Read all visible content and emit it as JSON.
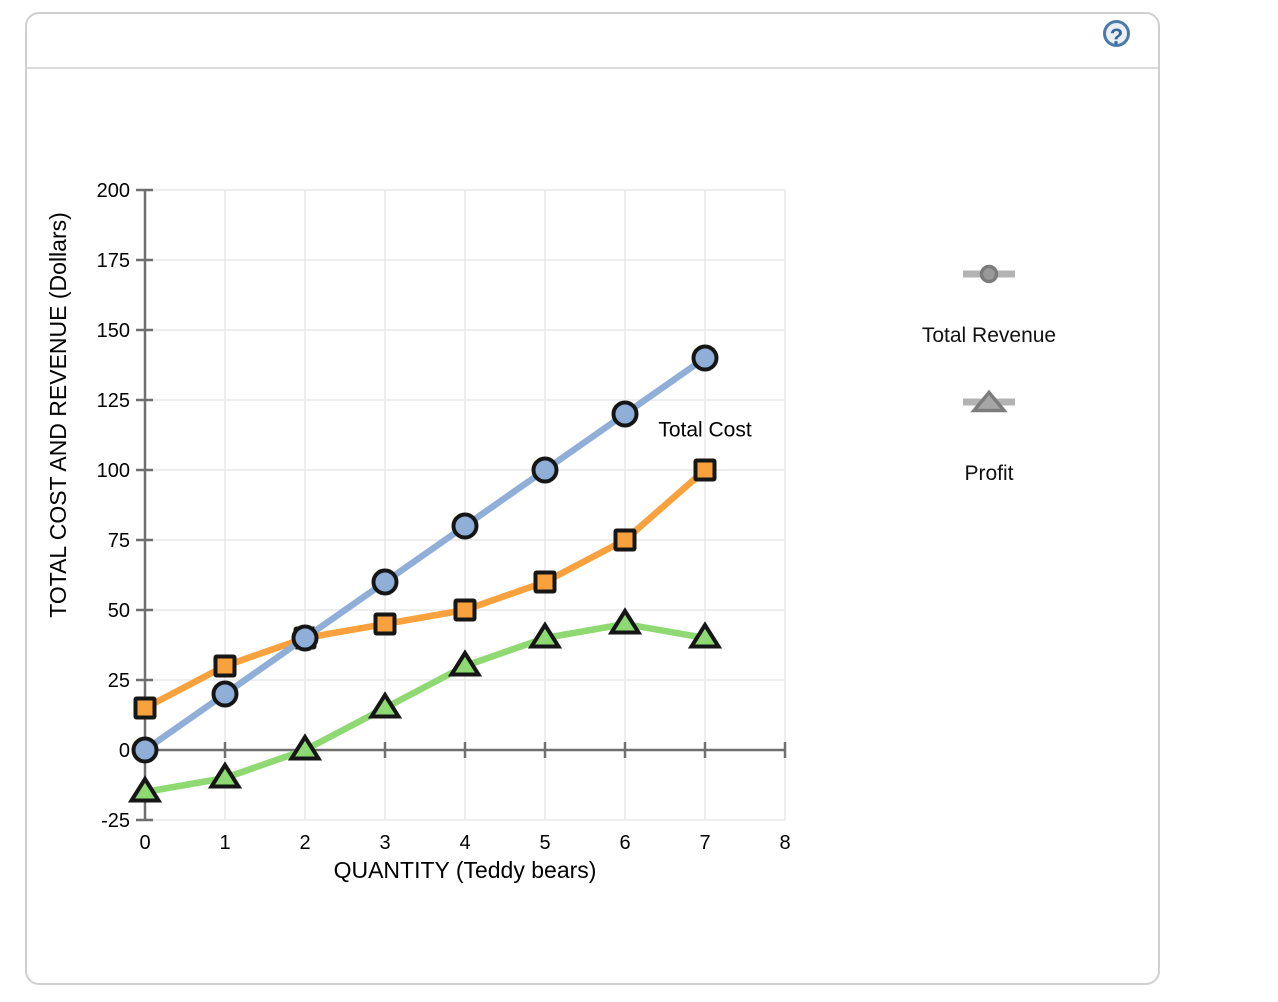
{
  "header": {
    "help_glyph": "?"
  },
  "chart_data": {
    "type": "line",
    "x": [
      0,
      1,
      2,
      3,
      4,
      5,
      6,
      7
    ],
    "series": [
      {
        "name": "Total Cost",
        "marker": "square",
        "color": "#F9A13C",
        "values": [
          15,
          30,
          40,
          45,
          50,
          60,
          75,
          100
        ]
      },
      {
        "name": "Total Revenue",
        "marker": "circle",
        "color": "#8FAFD9",
        "values": [
          0,
          20,
          40,
          60,
          80,
          100,
          120,
          140
        ]
      },
      {
        "name": "Profit",
        "marker": "triangle",
        "color": "#8FD973",
        "values": [
          -15,
          -10,
          0,
          15,
          30,
          40,
          45,
          40
        ]
      }
    ],
    "xlabel": "QUANTITY (Teddy bears)",
    "ylabel": "TOTAL COST AND REVENUE (Dollars)",
    "xlim": [
      0,
      8
    ],
    "ylim": [
      -25,
      200
    ],
    "x_ticks": [
      0,
      1,
      2,
      3,
      4,
      5,
      6,
      7,
      8
    ],
    "y_ticks": [
      -25,
      0,
      25,
      50,
      75,
      100,
      125,
      150,
      175,
      200
    ],
    "grid": true,
    "annotations": [
      {
        "text": "Total Cost",
        "x": 7,
        "y": 112
      }
    ],
    "legend_position": "right-outside"
  },
  "legend": {
    "items": [
      {
        "label": "Total Revenue",
        "marker": "circle"
      },
      {
        "label": "Profit",
        "marker": "triangle"
      }
    ]
  },
  "colors": {
    "revenue_blue": "#8FAFD9",
    "cost_orange": "#F9A13C",
    "profit_green": "#8FD973",
    "marker_outline": "#161616",
    "axis_gray": "#6F6F6F",
    "grid_gray": "#E9E9E9",
    "legend_bar_gray": "#B3B3B3",
    "legend_marker_gray": "#7C7C7C",
    "legend_fill_gray": "#9A9A9A",
    "help_blue": "#4A7AA8"
  }
}
